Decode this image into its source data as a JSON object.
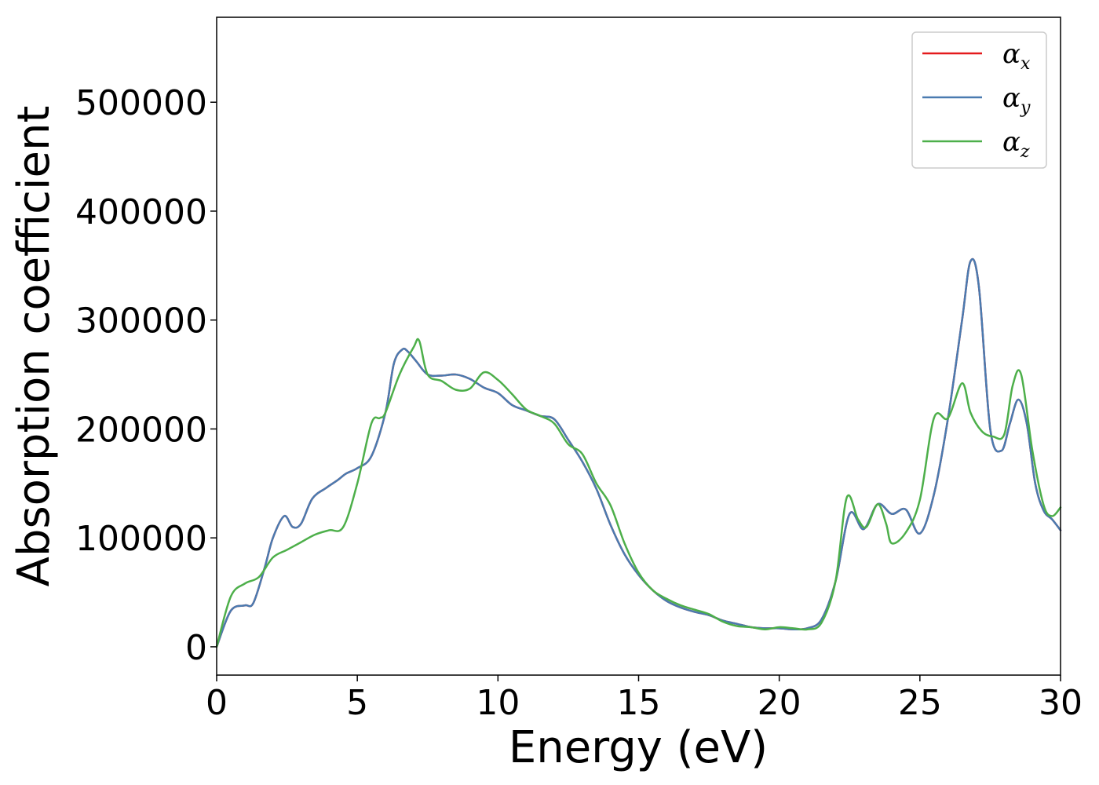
{
  "chart_data": {
    "type": "line",
    "title": "",
    "xlabel": "Energy (eV)",
    "ylabel": "Absorption coefficient",
    "xlim": [
      0,
      30
    ],
    "ylim": [
      -26000,
      578000
    ],
    "xticks": [
      0,
      5,
      10,
      15,
      20,
      25,
      30
    ],
    "yticks": [
      0,
      100000,
      200000,
      300000,
      400000,
      500000
    ],
    "grid": false,
    "legend_position": "top-right",
    "series": [
      {
        "name": "α_x",
        "label_base": "α",
        "label_sub": "x",
        "color": "#e41a1c",
        "x": [
          0,
          0.5,
          1.0,
          1.3,
          1.7,
          2.0,
          2.4,
          2.7,
          3.0,
          3.4,
          3.9,
          4.3,
          4.6,
          5.0,
          5.5,
          6.0,
          6.3,
          6.6,
          6.8,
          7.1,
          7.5,
          8.0,
          8.5,
          9.0,
          9.5,
          10.0,
          10.5,
          11.0,
          11.5,
          12.0,
          12.5,
          13.0,
          13.5,
          14.0,
          14.5,
          15.0,
          15.5,
          16.0,
          16.5,
          17.0,
          17.5,
          18.0,
          18.5,
          19.0,
          19.5,
          20.0,
          20.5,
          21.0,
          21.5,
          22.0,
          22.5,
          23.0,
          23.5,
          24.0,
          24.5,
          25.0,
          25.5,
          26.0,
          26.5,
          26.8,
          27.1,
          27.5,
          27.9,
          28.2,
          28.5,
          28.8,
          29.1,
          29.4,
          29.7,
          30.0
        ],
        "values": [
          0,
          33000,
          38000,
          40000,
          72000,
          100000,
          120000,
          110000,
          113000,
          136000,
          146000,
          153000,
          159000,
          164000,
          175000,
          215000,
          260000,
          273000,
          271000,
          262000,
          250000,
          249000,
          250000,
          246000,
          238000,
          233000,
          222000,
          217000,
          212000,
          209000,
          190000,
          170000,
          145000,
          112000,
          85000,
          66000,
          52000,
          42000,
          36000,
          32000,
          29000,
          24000,
          21000,
          18000,
          17000,
          17000,
          16000,
          17000,
          25000,
          60000,
          122000,
          108000,
          131000,
          122000,
          126000,
          104000,
          140000,
          210000,
          300000,
          354000,
          330000,
          200000,
          180000,
          205000,
          227000,
          205000,
          150000,
          125000,
          117000,
          107000
        ]
      },
      {
        "name": "α_y",
        "label_base": "α",
        "label_sub": "y",
        "color": "#4a7bb0",
        "x": [
          0,
          0.5,
          1.0,
          1.3,
          1.7,
          2.0,
          2.4,
          2.7,
          3.0,
          3.4,
          3.9,
          4.3,
          4.6,
          5.0,
          5.5,
          6.0,
          6.3,
          6.6,
          6.8,
          7.1,
          7.5,
          8.0,
          8.5,
          9.0,
          9.5,
          10.0,
          10.5,
          11.0,
          11.5,
          12.0,
          12.5,
          13.0,
          13.5,
          14.0,
          14.5,
          15.0,
          15.5,
          16.0,
          16.5,
          17.0,
          17.5,
          18.0,
          18.5,
          19.0,
          19.5,
          20.0,
          20.5,
          21.0,
          21.5,
          22.0,
          22.5,
          23.0,
          23.5,
          24.0,
          24.5,
          25.0,
          25.5,
          26.0,
          26.5,
          26.8,
          27.1,
          27.5,
          27.9,
          28.2,
          28.5,
          28.8,
          29.1,
          29.4,
          29.7,
          30.0
        ],
        "values": [
          0,
          33000,
          38000,
          40000,
          72000,
          100000,
          120000,
          110000,
          113000,
          136000,
          146000,
          153000,
          159000,
          164000,
          175000,
          215000,
          260000,
          273000,
          271000,
          262000,
          250000,
          249000,
          250000,
          246000,
          238000,
          233000,
          222000,
          217000,
          212000,
          209000,
          190000,
          170000,
          145000,
          112000,
          85000,
          66000,
          52000,
          42000,
          36000,
          32000,
          29000,
          24000,
          21000,
          18000,
          17000,
          17000,
          16000,
          17000,
          25000,
          60000,
          122000,
          108000,
          131000,
          122000,
          126000,
          104000,
          140000,
          210000,
          300000,
          354000,
          330000,
          200000,
          180000,
          205000,
          227000,
          205000,
          150000,
          125000,
          117000,
          107000
        ]
      },
      {
        "name": "α_z",
        "label_base": "α",
        "label_sub": "z",
        "color": "#4daf4a",
        "x": [
          0,
          0.5,
          1.0,
          1.5,
          2.0,
          2.5,
          3.0,
          3.5,
          4.0,
          4.5,
          5.0,
          5.5,
          5.8,
          6.0,
          6.5,
          7.0,
          7.2,
          7.5,
          8.0,
          8.5,
          9.0,
          9.5,
          10.0,
          10.5,
          11.0,
          11.5,
          12.0,
          12.5,
          13.0,
          13.5,
          14.0,
          14.5,
          15.0,
          15.5,
          16.0,
          16.5,
          17.0,
          17.5,
          18.0,
          18.5,
          19.0,
          19.5,
          20.0,
          20.5,
          21.0,
          21.5,
          22.0,
          22.4,
          22.8,
          23.1,
          23.5,
          23.8,
          24.0,
          24.5,
          25.0,
          25.5,
          26.0,
          26.5,
          26.8,
          27.2,
          27.6,
          28.0,
          28.3,
          28.6,
          29.0,
          29.4,
          29.7,
          30.0
        ],
        "values": [
          0,
          46000,
          58000,
          64000,
          82000,
          89000,
          96000,
          103000,
          107000,
          110000,
          150000,
          205000,
          210000,
          215000,
          250000,
          275000,
          281000,
          250000,
          244000,
          236000,
          237000,
          252000,
          245000,
          232000,
          218000,
          212000,
          205000,
          186000,
          177000,
          150000,
          130000,
          95000,
          68000,
          52000,
          44000,
          38000,
          34000,
          30000,
          23000,
          19000,
          18000,
          16000,
          18000,
          17000,
          16000,
          22000,
          60000,
          137000,
          117000,
          110000,
          131000,
          113000,
          95000,
          105000,
          135000,
          210000,
          210000,
          242000,
          215000,
          198000,
          193000,
          195000,
          240000,
          250000,
          180000,
          130000,
          120000,
          128000
        ]
      }
    ]
  }
}
